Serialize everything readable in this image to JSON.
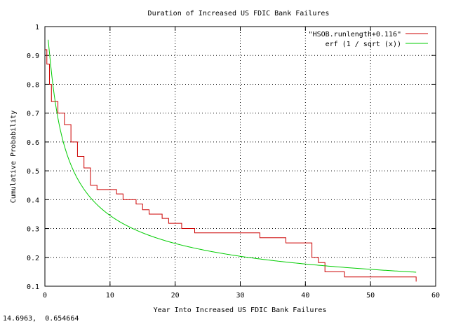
{
  "chart_data": {
    "type": "line",
    "title": "Duration of Increased US FDIC Bank Failures",
    "xlabel": "Year Into Increased US FDIC Bank Failures",
    "ylabel": "Cumulative Probability",
    "xlim": [
      0,
      60
    ],
    "ylim": [
      0.1,
      1.0
    ],
    "x_ticks": [
      "0",
      "10",
      "20",
      "30",
      "40",
      "50",
      "60"
    ],
    "y_ticks": [
      "0.1",
      "0.2",
      "0.3",
      "0.4",
      "0.5",
      "0.6",
      "0.7",
      "0.8",
      "0.9",
      "1"
    ],
    "grid": true,
    "legend_position": "top-right",
    "series": [
      {
        "name": "\"HSOB.runlength+0.116\"",
        "color": "#cc0000",
        "style": "step",
        "points": [
          [
            0,
            0.92
          ],
          [
            0.3,
            0.87
          ],
          [
            0.7,
            0.8
          ],
          [
            1,
            0.74
          ],
          [
            2,
            0.7
          ],
          [
            3,
            0.66
          ],
          [
            4,
            0.6
          ],
          [
            5,
            0.55
          ],
          [
            6,
            0.51
          ],
          [
            7,
            0.45
          ],
          [
            8,
            0.435
          ],
          [
            9,
            0.435
          ],
          [
            10,
            0.435
          ],
          [
            11,
            0.42
          ],
          [
            12,
            0.4
          ],
          [
            13,
            0.4
          ],
          [
            14,
            0.385
          ],
          [
            15,
            0.365
          ],
          [
            16,
            0.35
          ],
          [
            17,
            0.35
          ],
          [
            18,
            0.335
          ],
          [
            19,
            0.318
          ],
          [
            20,
            0.318
          ],
          [
            21,
            0.3
          ],
          [
            22,
            0.3
          ],
          [
            23,
            0.285
          ],
          [
            32,
            0.285
          ],
          [
            33,
            0.268
          ],
          [
            36,
            0.268
          ],
          [
            37,
            0.25
          ],
          [
            40,
            0.25
          ],
          [
            41,
            0.2
          ],
          [
            42,
            0.182
          ],
          [
            43,
            0.15
          ],
          [
            45,
            0.15
          ],
          [
            46,
            0.132
          ],
          [
            56,
            0.132
          ],
          [
            57,
            0.116
          ]
        ]
      },
      {
        "name": "erf (1 / sqrt (x))",
        "color": "#00cc00",
        "style": "line",
        "function": "erf(1/sqrt(x))",
        "x_range": [
          0.5,
          57
        ]
      }
    ]
  },
  "status": {
    "coordinates": "14.6963,  0.654664"
  }
}
